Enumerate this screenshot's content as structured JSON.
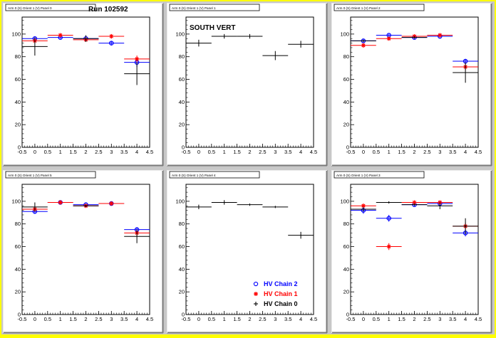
{
  "run_label": "Run 102592",
  "colors": {
    "chain2": "#0000ff",
    "chain1": "#ff0000",
    "chain0": "#000000"
  },
  "axis": {
    "x_ticks": [
      "-0.5",
      "0",
      "0.5",
      "1",
      "1.5",
      "2",
      "2.5",
      "3",
      "3.5",
      "4",
      "4.5"
    ],
    "y_ticks": [
      "0",
      "20",
      "40",
      "60",
      "80",
      "100"
    ]
  },
  "legend": {
    "entries": [
      "HV Chain 2",
      "HV Chain 1",
      "HV Chain 0"
    ],
    "placement": "bottom-right of panel 5"
  },
  "chart_data": [
    {
      "type": "scatter",
      "title": "Arm 0 (S) Orient 1 (V) Panel 0",
      "xlim": [
        -0.5,
        4.5
      ],
      "ylim": [
        0,
        115
      ],
      "series": [
        {
          "name": "HV Chain 2",
          "points": [
            {
              "x": 0,
              "xerr": 0.5,
              "y": 96,
              "yerr": 2
            },
            {
              "x": 1,
              "xerr": 0.5,
              "y": 97,
              "yerr": 1
            },
            {
              "x": 2,
              "xerr": 0.5,
              "y": 96,
              "yerr": 2
            },
            {
              "x": 3,
              "xerr": 0.5,
              "y": 92,
              "yerr": 2
            },
            {
              "x": 4,
              "xerr": 0.5,
              "y": 75,
              "yerr": 4
            }
          ]
        },
        {
          "name": "HV Chain 1",
          "points": [
            {
              "x": 0,
              "xerr": 0.5,
              "y": 94,
              "yerr": 2
            },
            {
              "x": 1,
              "xerr": 0.5,
              "y": 99,
              "yerr": 1
            },
            {
              "x": 2,
              "xerr": 0.5,
              "y": 95,
              "yerr": 2
            },
            {
              "x": 3,
              "xerr": 0.5,
              "y": 98,
              "yerr": 2
            },
            {
              "x": 4,
              "xerr": 0.5,
              "y": 78,
              "yerr": 3
            }
          ]
        },
        {
          "name": "HV Chain 0",
          "points": [
            {
              "x": 0,
              "xerr": 0.5,
              "y": 89,
              "yerr": 8
            },
            {
              "x": 2,
              "xerr": 0.5,
              "y": 96,
              "yerr": 3
            },
            {
              "x": 4,
              "xerr": 0.5,
              "y": 65,
              "yerr": 10
            }
          ]
        }
      ]
    },
    {
      "type": "scatter",
      "title": "Arm 0 (S) Orient 1 (V) Panel 1",
      "annotation": "SOUTH VERT",
      "xlim": [
        -0.5,
        4.5
      ],
      "ylim": [
        0,
        115
      ],
      "series": [
        {
          "name": "HV Chain 0",
          "points": [
            {
              "x": 0,
              "xerr": 0.5,
              "y": 92,
              "yerr": 3
            },
            {
              "x": 1,
              "xerr": 0.5,
              "y": 98,
              "yerr": 2
            },
            {
              "x": 2,
              "xerr": 0.5,
              "y": 98,
              "yerr": 2
            },
            {
              "x": 3,
              "xerr": 0.5,
              "y": 81,
              "yerr": 4
            },
            {
              "x": 4,
              "xerr": 0.5,
              "y": 91,
              "yerr": 3
            }
          ]
        }
      ]
    },
    {
      "type": "scatter",
      "title": "Arm 0 (S) Orient 1 (V) Panel 2",
      "xlim": [
        -0.5,
        4.5
      ],
      "ylim": [
        0,
        115
      ],
      "series": [
        {
          "name": "HV Chain 2",
          "points": [
            {
              "x": 0,
              "xerr": 0.5,
              "y": 94,
              "yerr": 1
            },
            {
              "x": 1,
              "xerr": 0.5,
              "y": 99,
              "yerr": 1
            },
            {
              "x": 2,
              "xerr": 0.5,
              "y": 97,
              "yerr": 1
            },
            {
              "x": 3,
              "xerr": 0.5,
              "y": 98,
              "yerr": 1
            },
            {
              "x": 4,
              "xerr": 0.5,
              "y": 76,
              "yerr": 2
            }
          ]
        },
        {
          "name": "HV Chain 1",
          "points": [
            {
              "x": 0,
              "xerr": 0.5,
              "y": 90,
              "yerr": 2
            },
            {
              "x": 1,
              "xerr": 0.5,
              "y": 96,
              "yerr": 1
            },
            {
              "x": 2,
              "xerr": 0.5,
              "y": 98,
              "yerr": 1
            },
            {
              "x": 3,
              "xerr": 0.5,
              "y": 99,
              "yerr": 1
            },
            {
              "x": 4,
              "xerr": 0.5,
              "y": 71,
              "yerr": 3
            }
          ]
        },
        {
          "name": "HV Chain 0",
          "points": [
            {
              "x": 0,
              "xerr": 0.5,
              "y": 94,
              "yerr": 1
            },
            {
              "x": 2,
              "xerr": 0.5,
              "y": 97,
              "yerr": 1
            },
            {
              "x": 4,
              "xerr": 0.5,
              "y": 66,
              "yerr": 9
            }
          ]
        }
      ]
    },
    {
      "type": "scatter",
      "title": "Arm 0 (S) Orient 1 (V) Panel 5",
      "xlim": [
        -0.5,
        4.5
      ],
      "ylim": [
        0,
        115
      ],
      "series": [
        {
          "name": "HV Chain 2",
          "points": [
            {
              "x": 0,
              "xerr": 0.5,
              "y": 91,
              "yerr": 2
            },
            {
              "x": 1,
              "xerr": 0.5,
              "y": 99,
              "yerr": 1
            },
            {
              "x": 2,
              "xerr": 0.5,
              "y": 97,
              "yerr": 1
            },
            {
              "x": 3,
              "xerr": 0.5,
              "y": 98,
              "yerr": 1
            },
            {
              "x": 4,
              "xerr": 0.5,
              "y": 75,
              "yerr": 2
            }
          ]
        },
        {
          "name": "HV Chain 1",
          "points": [
            {
              "x": 0,
              "xerr": 0.5,
              "y": 93,
              "yerr": 2
            },
            {
              "x": 1,
              "xerr": 0.5,
              "y": 99,
              "yerr": 1
            },
            {
              "x": 2,
              "xerr": 0.5,
              "y": 96,
              "yerr": 1
            },
            {
              "x": 3,
              "xerr": 0.5,
              "y": 98,
              "yerr": 1
            },
            {
              "x": 4,
              "xerr": 0.5,
              "y": 72,
              "yerr": 3
            }
          ]
        },
        {
          "name": "HV Chain 0",
          "points": [
            {
              "x": 0,
              "xerr": 0.5,
              "y": 95,
              "yerr": 4
            },
            {
              "x": 2,
              "xerr": 0.5,
              "y": 96,
              "yerr": 1
            },
            {
              "x": 4,
              "xerr": 0.5,
              "y": 69,
              "yerr": 6
            }
          ]
        }
      ]
    },
    {
      "type": "scatter",
      "title": "Arm 0 (S) Orient 1 (V) Panel 4",
      "xlim": [
        -0.5,
        4.5
      ],
      "ylim": [
        0,
        115
      ],
      "series": [
        {
          "name": "HV Chain 0",
          "points": [
            {
              "x": 0,
              "xerr": 0.5,
              "y": 95,
              "yerr": 2
            },
            {
              "x": 1,
              "xerr": 0.5,
              "y": 99,
              "yerr": 2
            },
            {
              "x": 2,
              "xerr": 0.5,
              "y": 97,
              "yerr": 1
            },
            {
              "x": 3,
              "xerr": 0.5,
              "y": 95,
              "yerr": 1
            },
            {
              "x": 4,
              "xerr": 0.5,
              "y": 70,
              "yerr": 3
            }
          ]
        }
      ]
    },
    {
      "type": "scatter",
      "title": "Arm 0 (S) Orient 1 (V) Panel 3",
      "xlim": [
        -0.5,
        4.5
      ],
      "ylim": [
        0,
        115
      ],
      "series": [
        {
          "name": "HV Chain 2",
          "points": [
            {
              "x": 0,
              "xerr": 0.5,
              "y": 92,
              "yerr": 3
            },
            {
              "x": 1,
              "xerr": 0.5,
              "y": 85,
              "yerr": 3
            },
            {
              "x": 2,
              "xerr": 0.5,
              "y": 97,
              "yerr": 1
            },
            {
              "x": 3,
              "xerr": 0.5,
              "y": 98,
              "yerr": 1
            },
            {
              "x": 4,
              "xerr": 0.5,
              "y": 72,
              "yerr": 3
            }
          ]
        },
        {
          "name": "HV Chain 1",
          "points": [
            {
              "x": 0,
              "xerr": 0.5,
              "y": 96,
              "yerr": 2
            },
            {
              "x": 1,
              "xerr": 0.5,
              "y": 60,
              "yerr": 3
            },
            {
              "x": 2,
              "xerr": 0.5,
              "y": 99,
              "yerr": 1
            },
            {
              "x": 3,
              "xerr": 0.5,
              "y": 99,
              "yerr": 1
            },
            {
              "x": 4,
              "xerr": 0.5,
              "y": 78,
              "yerr": 3
            }
          ]
        },
        {
          "name": "HV Chain 0",
          "points": [
            {
              "x": 0,
              "xerr": 0.5,
              "y": 93,
              "yerr": 2
            },
            {
              "x": 1,
              "xerr": 0.5,
              "y": 99,
              "yerr": 1
            },
            {
              "x": 2,
              "xerr": 0.5,
              "y": 97,
              "yerr": 1
            },
            {
              "x": 3,
              "xerr": 0.5,
              "y": 96,
              "yerr": 3
            },
            {
              "x": 4,
              "xerr": 0.5,
              "y": 78,
              "yerr": 7
            }
          ]
        }
      ]
    }
  ]
}
